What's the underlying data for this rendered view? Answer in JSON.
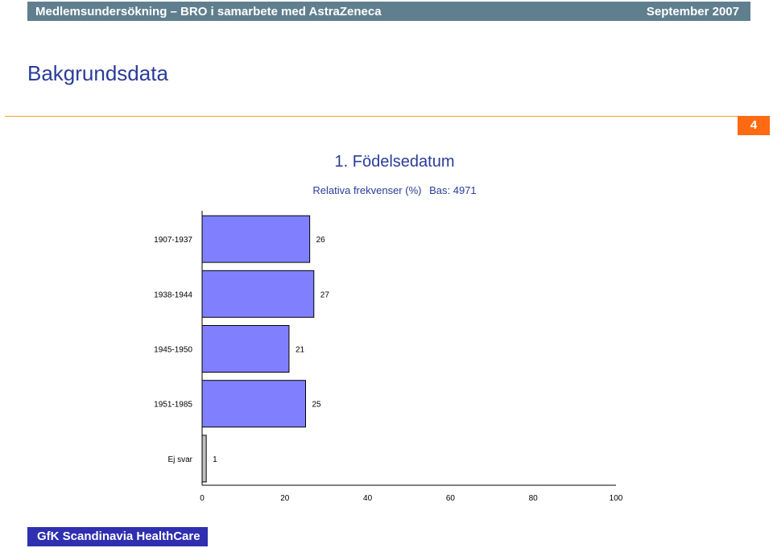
{
  "header": {
    "left_text": "Medlemsundersökning – BRO i samarbete med AstraZeneca",
    "right_text": "September 2007"
  },
  "page": {
    "heading": "Bakgrundsdata",
    "page_number": "4"
  },
  "chart_data": {
    "type": "bar",
    "orientation": "horizontal",
    "title": "1. Födelsedatum",
    "subtitle_parts": [
      "Relativa frekvenser (%)",
      "Bas: 4971"
    ],
    "categories": [
      "1907-1937",
      "1938-1944",
      "1945-1950",
      "1951-1985",
      "Ej svar"
    ],
    "values": [
      26,
      27,
      21,
      25,
      1
    ],
    "bar_colors": [
      "#8080ff",
      "#8080ff",
      "#8080ff",
      "#8080ff",
      "#c0c0c0"
    ],
    "xlim": [
      0,
      100
    ],
    "xticks": [
      0,
      20,
      40,
      60,
      80,
      100
    ],
    "grid": false,
    "xlabel": "",
    "ylabel": ""
  },
  "footer": {
    "text": "GfK Scandinavia HealthCare"
  }
}
